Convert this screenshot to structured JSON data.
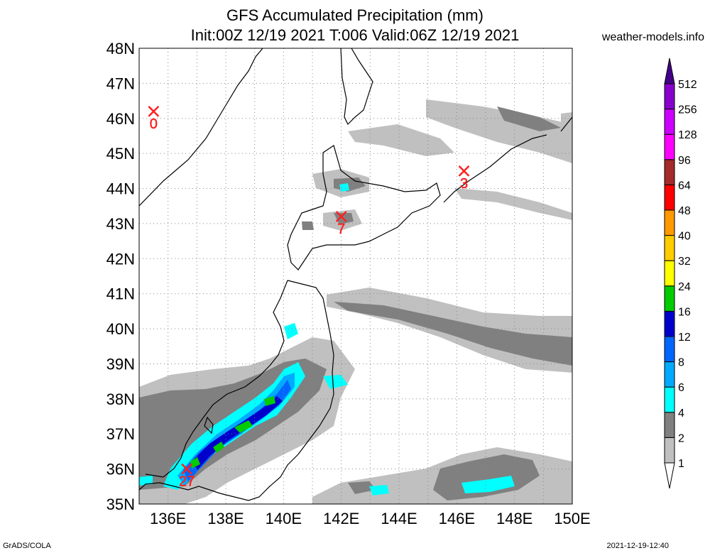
{
  "title_line1": "GFS Accumulated Precipitation (mm)",
  "title_line2": "Init:00Z 12/19 2021 T:006 Valid:06Z 12/19 2021",
  "site": "weather-models.info",
  "footer_left": "GrADS/COLA",
  "footer_right": "2021-12-19-12:40",
  "map": {
    "lat_labels": [
      "48N",
      "47N",
      "46N",
      "45N",
      "44N",
      "43N",
      "42N",
      "41N",
      "40N",
      "39N",
      "38N",
      "37N",
      "36N",
      "35N"
    ],
    "lon_labels": [
      "136E",
      "138E",
      "140E",
      "142E",
      "144E",
      "146E",
      "148E",
      "150E"
    ],
    "lat_range": [
      35,
      48
    ],
    "lon_range": [
      135,
      150
    ],
    "grid": "dotted"
  },
  "colorbar": {
    "levels": [
      "1",
      "2",
      "4",
      "6",
      "8",
      "12",
      "16",
      "24",
      "32",
      "40",
      "48",
      "64",
      "96",
      "128",
      "256",
      "512"
    ],
    "colors": [
      "#ffffff",
      "#c0c0c0",
      "#808080",
      "#00ffff",
      "#00aaff",
      "#0066ff",
      "#0000cc",
      "#00cc00",
      "#ffff00",
      "#ffcc00",
      "#ff9900",
      "#ff0000",
      "#a52a2a",
      "#ff00ff",
      "#cc00ff",
      "#8800cc",
      "#440088"
    ]
  },
  "stations": [
    {
      "value": "0",
      "lat": 46.2,
      "lon": 135.5
    },
    {
      "value": "3",
      "lat": 44.5,
      "lon": 146.25
    },
    {
      "value": "7",
      "lat": 43.2,
      "lon": 142.0
    },
    {
      "value": "27",
      "lat": 36.0,
      "lon": 136.65
    }
  ]
}
